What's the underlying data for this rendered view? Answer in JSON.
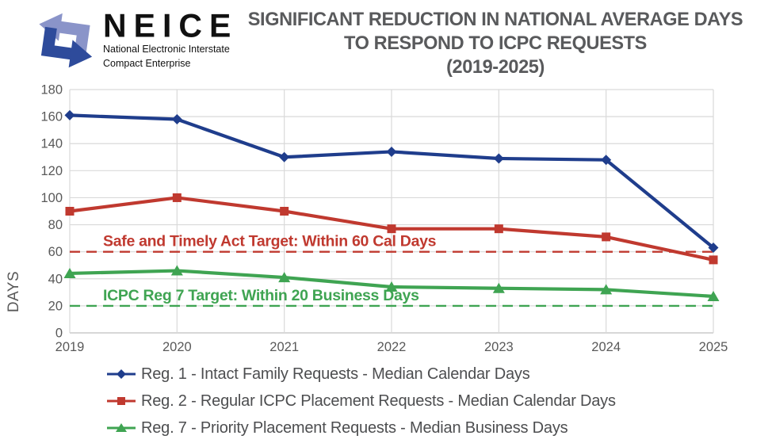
{
  "logo": {
    "name": "NEICE",
    "subtitle_line1": "National Electronic Interstate",
    "subtitle_line2": "Compact Enterprise",
    "arrow_light_color": "#8a94c9",
    "arrow_dark_color": "#2e4b9b"
  },
  "title": {
    "line1": "SIGNIFICANT REDUCTION IN NATIONAL AVERAGE DAYS",
    "line2": "TO RESPOND TO ICPC REQUESTS",
    "line3": "(2019-2025)"
  },
  "chart_data": {
    "type": "line",
    "x": [
      2019,
      2020,
      2021,
      2022,
      2023,
      2024,
      2025
    ],
    "xlabel": "",
    "ylabel": "DAYS",
    "ylim": [
      0,
      180
    ],
    "ytick_step": 20,
    "grid": true,
    "legend_position": "bottom",
    "series": [
      {
        "name": "Reg. 1 - Intact Family Requests - Median Calendar Days",
        "values": [
          161,
          158,
          130,
          134,
          129,
          128,
          63
        ],
        "color": "#1f3d8c",
        "marker": "diamond"
      },
      {
        "name": "Reg. 2 - Regular ICPC Placement Requests - Median Calendar Days",
        "values": [
          90,
          100,
          90,
          77,
          77,
          71,
          54
        ],
        "color": "#c0392f",
        "marker": "square"
      },
      {
        "name": "Reg. 7 - Priority Placement Requests - Median Business Days",
        "values": [
          44,
          46,
          41,
          34,
          33,
          32,
          27
        ],
        "color": "#3fa452",
        "marker": "triangle"
      }
    ],
    "reference_lines": [
      {
        "value": 60,
        "label": "Safe and Timely Act Target: Within 60 Cal Days",
        "color": "#c0392f"
      },
      {
        "value": 20,
        "label": "ICPC Reg 7 Target: Within 20 Business Days",
        "color": "#3fa452"
      }
    ]
  },
  "colors": {
    "grid": "#d9d9d9",
    "axis": "#bfbfbf",
    "tick_text": "#595959"
  }
}
